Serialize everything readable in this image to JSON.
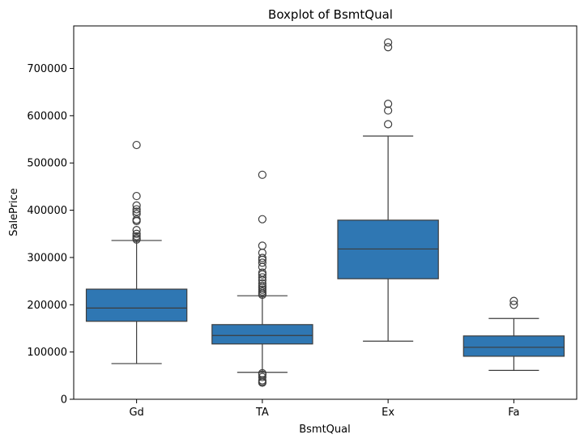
{
  "chart_data": {
    "type": "box",
    "title": "Boxplot of BsmtQual",
    "xlabel": "BsmtQual",
    "ylabel": "SalePrice",
    "categories": [
      "Gd",
      "TA",
      "Ex",
      "Fa"
    ],
    "ylim": [
      0,
      790000
    ],
    "yticks": [
      0,
      100000,
      200000,
      300000,
      400000,
      500000,
      600000,
      700000
    ],
    "ytick_labels": [
      "0",
      "100000",
      "200000",
      "300000",
      "400000",
      "500000",
      "600000",
      "700000"
    ],
    "box_color": "#2f77b3",
    "line_color": "#3d3d3d",
    "grid": false,
    "boxes": [
      {
        "category": "Gd",
        "whisker_low": 75500,
        "q1": 165000,
        "median": 193000,
        "q3": 233000,
        "whisker_high": 336000,
        "outliers": [
          538000,
          430000,
          410000,
          402000,
          397000,
          392000,
          380000,
          377000,
          358000,
          350000,
          345000,
          341000,
          338000
        ]
      },
      {
        "category": "TA",
        "whisker_low": 57000,
        "q1": 117000,
        "median": 135000,
        "q3": 158000,
        "whisker_high": 219000,
        "outliers": [
          475000,
          381000,
          325000,
          310000,
          299000,
          295000,
          289000,
          280000,
          268000,
          264000,
          258000,
          252000,
          245000,
          240000,
          236000,
          232000,
          228000,
          224000,
          221000,
          55000,
          52000,
          47000,
          40000,
          37000,
          35000
        ]
      },
      {
        "category": "Ex",
        "whisker_low": 123000,
        "q1": 255000,
        "median": 318000,
        "q3": 379000,
        "whisker_high": 557000,
        "outliers": [
          755000,
          745000,
          625000,
          611000,
          582000
        ]
      },
      {
        "category": "Fa",
        "whisker_low": 61000,
        "q1": 91000,
        "median": 110000,
        "q3": 134000,
        "whisker_high": 171000,
        "outliers": [
          208000,
          200000
        ]
      }
    ]
  }
}
